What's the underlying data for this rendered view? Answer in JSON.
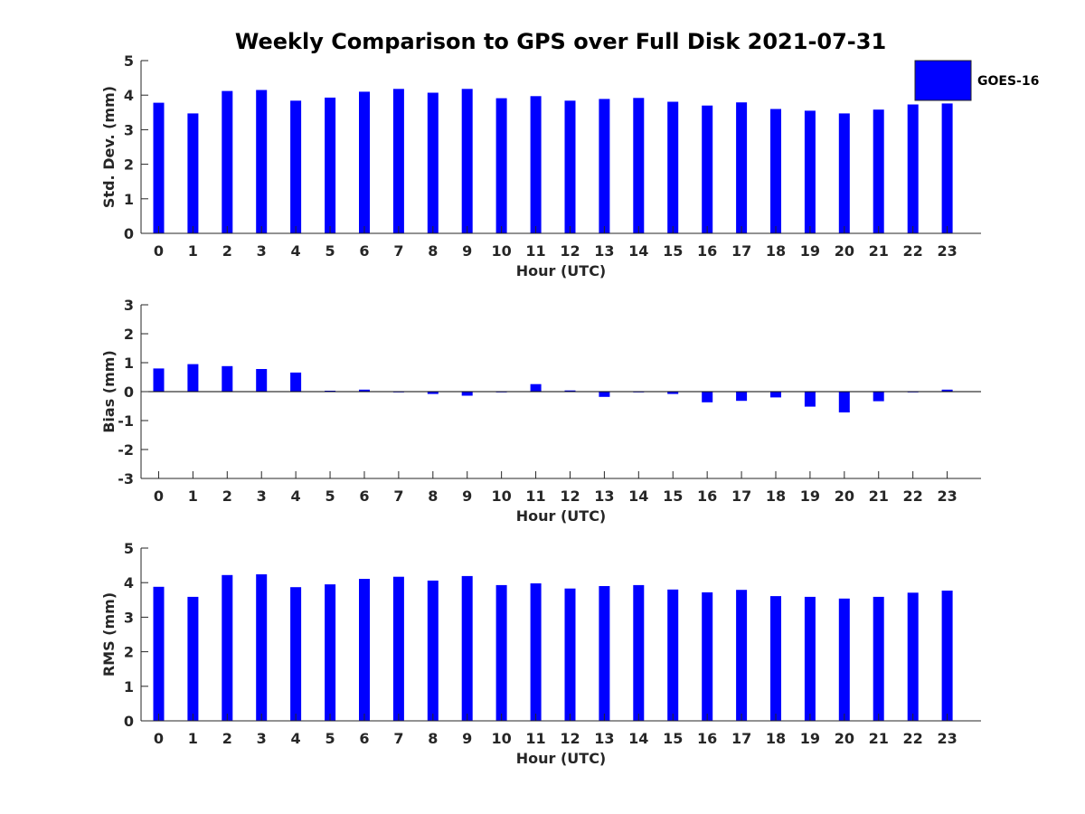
{
  "title": "Weekly Comparison to GPS over Full Disk 2021-07-31",
  "colors": {
    "bar": "#0000ff",
    "axis": "#262626",
    "legend_border": "#262626"
  },
  "legend": {
    "label": "GOES-16",
    "placement": "top-right"
  },
  "chart_data": [
    {
      "type": "bar",
      "ylabel": "Std. Dev. (mm)",
      "xlabel": "Hour (UTC)",
      "ylim": [
        0,
        5
      ],
      "yticks": [
        "0",
        "1",
        "2",
        "3",
        "4",
        "5"
      ],
      "categories": [
        "0",
        "1",
        "2",
        "3",
        "4",
        "5",
        "6",
        "7",
        "8",
        "9",
        "10",
        "11",
        "12",
        "13",
        "14",
        "15",
        "16",
        "17",
        "18",
        "19",
        "20",
        "21",
        "22",
        "23"
      ],
      "series": [
        {
          "name": "GOES-16",
          "values": [
            3.78,
            3.47,
            4.12,
            4.15,
            3.84,
            3.93,
            4.1,
            4.18,
            4.07,
            4.18,
            3.91,
            3.97,
            3.84,
            3.89,
            3.92,
            3.81,
            3.7,
            3.79,
            3.6,
            3.55,
            3.47,
            3.58,
            3.73,
            3.76
          ]
        }
      ]
    },
    {
      "type": "bar",
      "ylabel": "Bias (mm)",
      "xlabel": "Hour (UTC)",
      "ylim": [
        -3,
        3
      ],
      "yticks": [
        "-3",
        "-2",
        "-1",
        "0",
        "1",
        "2",
        "3"
      ],
      "categories": [
        "0",
        "1",
        "2",
        "3",
        "4",
        "5",
        "6",
        "7",
        "8",
        "9",
        "10",
        "11",
        "12",
        "13",
        "14",
        "15",
        "16",
        "17",
        "18",
        "19",
        "20",
        "21",
        "22",
        "23"
      ],
      "series": [
        {
          "name": "GOES-16",
          "values": [
            0.8,
            0.95,
            0.88,
            0.78,
            0.66,
            0.03,
            0.07,
            -0.02,
            -0.08,
            -0.14,
            -0.02,
            0.26,
            0.04,
            -0.18,
            -0.02,
            -0.08,
            -0.37,
            -0.32,
            -0.2,
            -0.52,
            -0.72,
            -0.33,
            -0.01,
            0.07
          ]
        }
      ]
    },
    {
      "type": "bar",
      "ylabel": "RMS (mm)",
      "xlabel": "Hour (UTC)",
      "ylim": [
        0,
        5
      ],
      "yticks": [
        "0",
        "1",
        "2",
        "3",
        "4",
        "5"
      ],
      "categories": [
        "0",
        "1",
        "2",
        "3",
        "4",
        "5",
        "6",
        "7",
        "8",
        "9",
        "10",
        "11",
        "12",
        "13",
        "14",
        "15",
        "16",
        "17",
        "18",
        "19",
        "20",
        "21",
        "22",
        "23"
      ],
      "series": [
        {
          "name": "GOES-16",
          "values": [
            3.88,
            3.59,
            4.22,
            4.24,
            3.87,
            3.95,
            4.11,
            4.17,
            4.06,
            4.19,
            3.93,
            3.98,
            3.83,
            3.9,
            3.93,
            3.8,
            3.72,
            3.79,
            3.61,
            3.59,
            3.54,
            3.59,
            3.71,
            3.77
          ]
        }
      ]
    }
  ]
}
